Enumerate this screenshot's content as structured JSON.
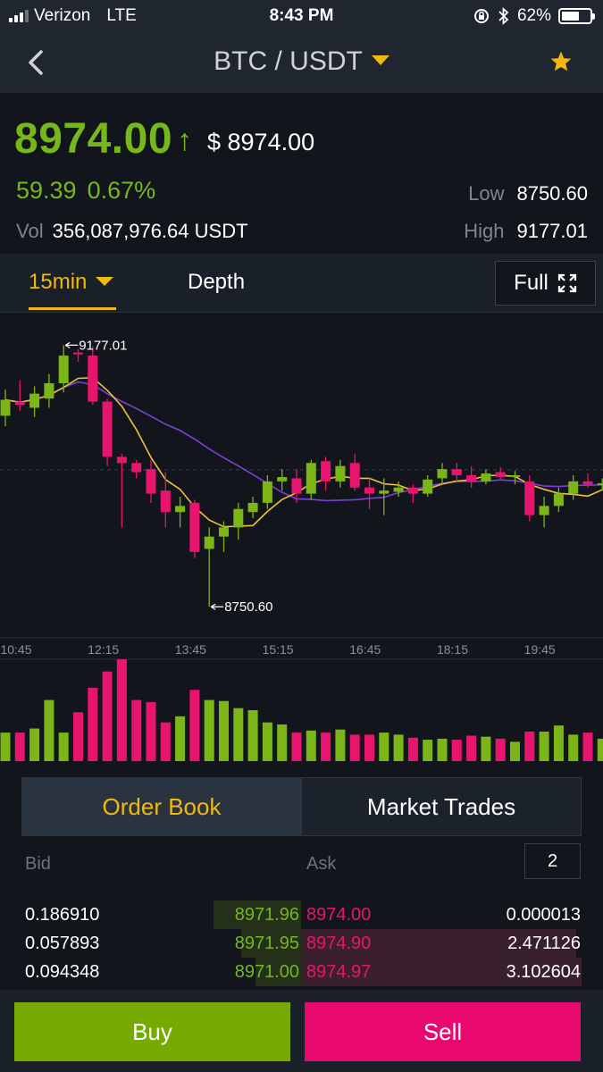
{
  "status_bar": {
    "carrier": "Verizon",
    "network": "LTE",
    "time": "8:43 PM",
    "battery": "62%",
    "battery_level": 0.62
  },
  "header": {
    "pair": "BTC / USDT",
    "back_icon": "chevron-left-icon",
    "favorite_icon": "star-icon",
    "accent": "#f0b90b"
  },
  "ticker": {
    "last_price": "8974.00",
    "direction_arrow": "↑",
    "usd_price": "$ 8974.00",
    "change": "59.39",
    "change_pct": "0.67%",
    "vol_label": "Vol",
    "volume": "356,087,976.64 USDT",
    "low_label": "Low",
    "low": "8750.60",
    "high_label": "High",
    "high": "9177.01"
  },
  "chart_tabs": {
    "interval": "15min",
    "depth": "Depth",
    "full": "Full"
  },
  "chart_data": {
    "type": "candlestick",
    "interval": "15min",
    "x_ticks": [
      "10:45",
      "12:15",
      "13:45",
      "15:15",
      "16:45",
      "18:15",
      "19:45"
    ],
    "y_range": [
      8700,
      9230
    ],
    "high_marker": "9177.01",
    "low_marker": "8750.60",
    "colors": {
      "up": "#7cb518",
      "down": "#e8156e",
      "ma_fast": "#f0c040",
      "ma_slow": "#7b3fd8"
    },
    "candles": [
      [
        9062,
        9105,
        9045,
        9088
      ],
      [
        9085,
        9120,
        9070,
        9080
      ],
      [
        9075,
        9110,
        9060,
        9098
      ],
      [
        9090,
        9130,
        9075,
        9115
      ],
      [
        9115,
        9177.01,
        9100,
        9160
      ],
      [
        9165,
        9170,
        9150,
        9162
      ],
      [
        9160,
        9175,
        9080,
        9085
      ],
      [
        9085,
        9090,
        8980,
        8995
      ],
      [
        8995,
        9000,
        8880,
        8985
      ],
      [
        8985,
        8990,
        8960,
        8970
      ],
      [
        8975,
        8990,
        8920,
        8935
      ],
      [
        8940,
        8970,
        8880,
        8905
      ],
      [
        8905,
        8930,
        8880,
        8915
      ],
      [
        8920,
        8925,
        8830,
        8840
      ],
      [
        8845,
        8880,
        8750.6,
        8865
      ],
      [
        8865,
        8890,
        8840,
        8880
      ],
      [
        8880,
        8920,
        8860,
        8910
      ],
      [
        8905,
        8930,
        8895,
        8920
      ],
      [
        8920,
        8965,
        8910,
        8955
      ],
      [
        8955,
        8975,
        8940,
        8962
      ],
      [
        8960,
        8975,
        8920,
        8935
      ],
      [
        8935,
        8990,
        8925,
        8985
      ],
      [
        8988,
        8995,
        8940,
        8955
      ],
      [
        8955,
        8990,
        8945,
        8980
      ],
      [
        8985,
        9000,
        8940,
        8945
      ],
      [
        8945,
        8960,
        8910,
        8935
      ],
      [
        8935,
        8960,
        8900,
        8940
      ],
      [
        8938,
        8955,
        8930,
        8945
      ],
      [
        8945,
        8950,
        8920,
        8935
      ],
      [
        8935,
        8965,
        8930,
        8958
      ],
      [
        8960,
        8985,
        8950,
        8975
      ],
      [
        8975,
        8985,
        8955,
        8965
      ],
      [
        8965,
        8980,
        8945,
        8955
      ],
      [
        8955,
        8975,
        8950,
        8968
      ],
      [
        8970,
        8978,
        8958,
        8962
      ],
      [
        8962,
        8972,
        8950,
        8965
      ],
      [
        8955,
        8965,
        8890,
        8900
      ],
      [
        8900,
        8930,
        8880,
        8915
      ],
      [
        8915,
        8945,
        8905,
        8935
      ],
      [
        8935,
        8965,
        8925,
        8955
      ],
      [
        8955,
        8968,
        8945,
        8950
      ],
      [
        8950,
        8960,
        8940,
        8952
      ],
      [
        8950,
        8975,
        8945,
        8968
      ],
      [
        8970,
        9025,
        8965,
        9015
      ]
    ],
    "volume_pct": [
      0.28,
      0.28,
      0.32,
      0.6,
      0.28,
      0.48,
      0.72,
      0.88,
      1.0,
      0.6,
      0.58,
      0.38,
      0.44,
      0.7,
      0.6,
      0.59,
      0.52,
      0.5,
      0.38,
      0.36,
      0.28,
      0.3,
      0.28,
      0.31,
      0.26,
      0.26,
      0.28,
      0.26,
      0.23,
      0.21,
      0.22,
      0.21,
      0.25,
      0.24,
      0.22,
      0.19,
      0.29,
      0.29,
      0.35,
      0.26,
      0.28,
      0.22,
      0.25,
      0.26
    ]
  },
  "order_book": {
    "tabs": [
      "Order Book",
      "Market Trades"
    ],
    "bid_header": "Bid",
    "ask_header": "Ask",
    "depth_value": "2",
    "rows": [
      {
        "bid_amount": "0.186910",
        "bid_price": "8971.96",
        "ask_price": "8974.00",
        "ask_amount": "0.000013",
        "bid_depth": 0.29,
        "ask_depth": 0.0
      },
      {
        "bid_amount": "0.057893",
        "bid_price": "8971.95",
        "ask_price": "8974.90",
        "ask_amount": "2.471126",
        "bid_depth": 0.2,
        "ask_depth": 0.98
      },
      {
        "bid_amount": "0.094348",
        "bid_price": "8971.00",
        "ask_price": "8974.97",
        "ask_amount": "3.102604",
        "bid_depth": 0.15,
        "ask_depth": 1.0
      }
    ]
  },
  "actions": {
    "buy": "Buy",
    "sell": "Sell",
    "buy_color": "#76aa00",
    "sell_color": "#e8086e"
  }
}
